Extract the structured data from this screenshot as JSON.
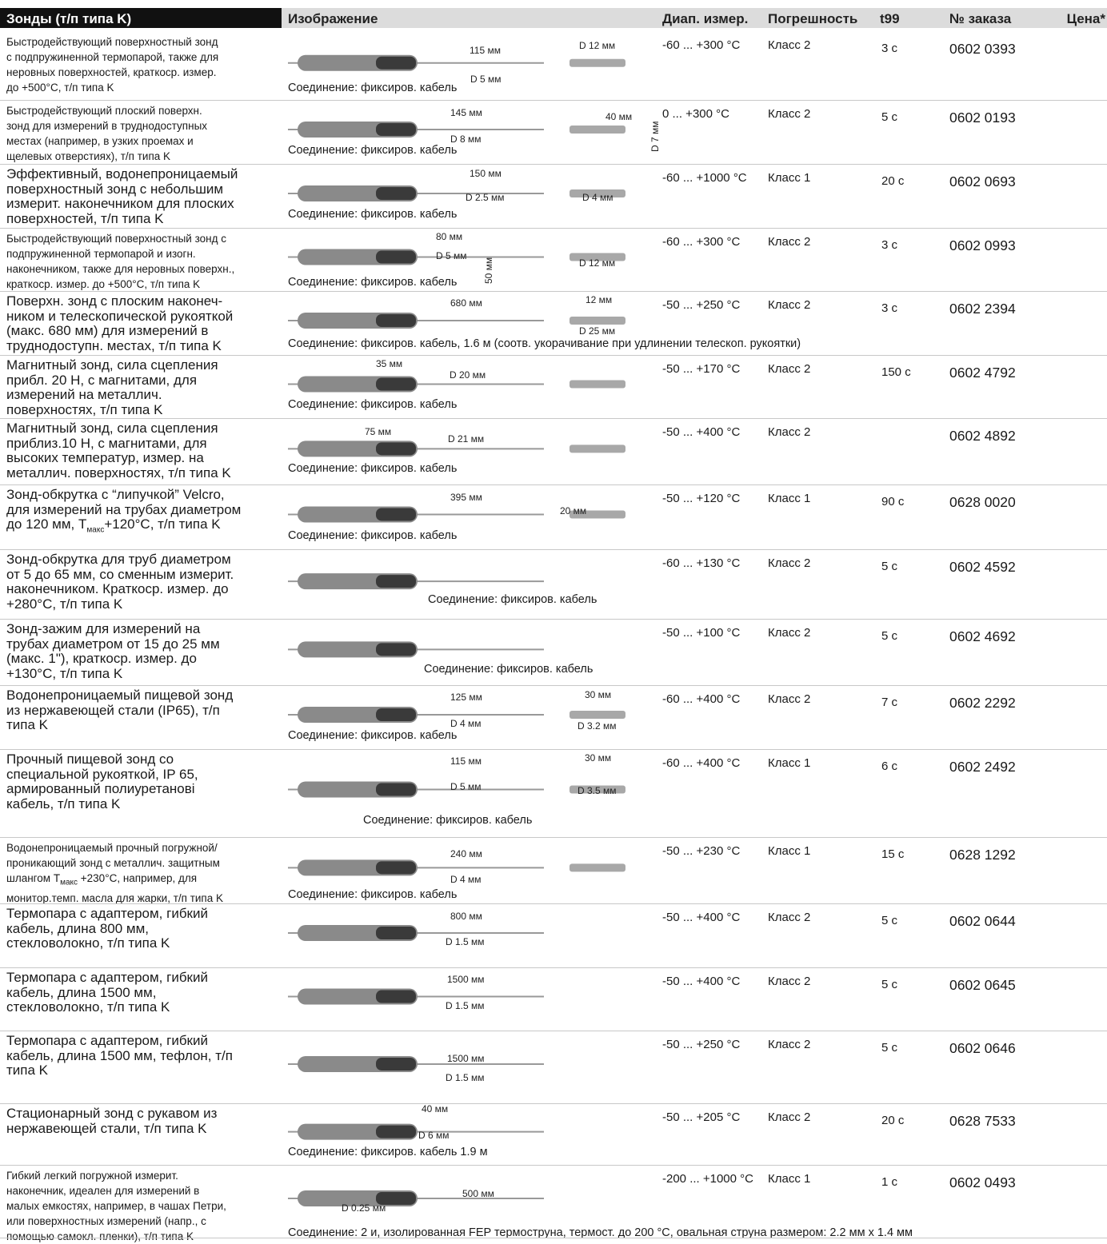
{
  "header": {
    "title": "Зонды (т/п типа K)",
    "image": "Изображение",
    "range": "Диап. измер.",
    "accuracy": "Погрешность",
    "t99": "t99",
    "order": "№ заказа",
    "price": "Цена*"
  },
  "rows": [
    {
      "desc": [
        "Быстродействующий поверхностный зонд",
        "с подпружиненной термопарой, также для",
        "неровных поверхностей, краткоср. измер.",
        "до +500°С, т/п типа K"
      ],
      "labels": [
        "115 мм",
        "D 12 мм",
        "D 5 мм"
      ],
      "connection": "Соединение: фиксиров. кабель",
      "range": "-60 ... +300 °C",
      "accuracy": "Класс 2",
      "t99": "3 с",
      "order": "0602 0393"
    },
    {
      "desc": [
        "Быстродействующий плоский поверхн.",
        "зонд для измерений в труднодоступных",
        "местах (например, в узких проемах и",
        "щелевых отверстиях), т/п типа K"
      ],
      "labels": [
        "145 мм",
        "40 мм",
        "D 8 мм",
        "D 7 мм"
      ],
      "connection": "Соединение: фиксиров. кабель",
      "range": "0 ... +300 °C",
      "accuracy": "Класс 2",
      "t99": "5 с",
      "order": "0602 0193"
    },
    {
      "desc": [
        "Эффективный, водонепроницаемый",
        "поверхностный зонд с небольшим",
        "измерит. наконечником для плоских",
        "поверхностей, т/п типа K"
      ],
      "labels": [
        "150 мм",
        "D 2.5 мм",
        "D 4 мм"
      ],
      "connection": "Соединение: фиксиров. кабель",
      "range": "-60 ... +1000 °C",
      "accuracy": "Класс 1",
      "t99": "20 с",
      "order": "0602 0693"
    },
    {
      "desc": [
        "Быстродействующий поверхностный зонд с",
        "подпружиненной термопарой и изогн.",
        "наконечником, также для неровных поверхн.,",
        "краткоср. измер. до +500°С, т/п типа K"
      ],
      "labels": [
        "80 мм",
        "D 5 мм",
        "50 мм",
        "D 12 мм"
      ],
      "connection": "Соединение: фиксиров. кабель",
      "range": "-60 ... +300 °C",
      "accuracy": "Класс 2",
      "t99": "3 с",
      "order": "0602 0993"
    },
    {
      "desc": [
        "Поверхн. зонд с плоским наконеч-",
        "ником и телескопической рукояткой",
        "(макс. 680 мм) для измерений в",
        "труднодоступн. местах, т/п типа K"
      ],
      "labels": [
        "680 мм",
        "12 мм",
        "D 25 мм"
      ],
      "connection": "Соединение: фиксиров. кабель, 1.6 м (соотв. укорачивание при удлинении телескоп. рукоятки)",
      "range": "-50 ... +250 °C",
      "accuracy": "Класс 2",
      "t99": "3 с",
      "order": "0602 2394"
    },
    {
      "desc": [
        "Магнитный зонд, сила сцепления",
        "прибл. 20 Н, с магнитами, для",
        "измерений на металлич.",
        "поверхностях, т/п типа K"
      ],
      "labels": [
        "35 мм",
        "D 20 мм"
      ],
      "connection": "Соединение: фиксиров. кабель",
      "range": "-50 ... +170 °C",
      "accuracy": "Класс 2",
      "t99": "150 с",
      "order": "0602 4792"
    },
    {
      "desc": [
        "Магнитный зонд, сила сцепления",
        "приблиз.10 Н, с магнитами, для",
        "высоких температур, измер. на",
        "металлич. поверхностях, т/п типа K"
      ],
      "labels": [
        "75 мм",
        "D 21 мм"
      ],
      "connection": "Соединение: фиксиров. кабель",
      "range": "-50 ... +400 °C",
      "accuracy": "Класс 2",
      "order": "0602 4892"
    },
    {
      "desc": [
        "Зонд-обкрутка с “липучкой” Velcro,",
        "для измерений на трубах диаметром",
        [
          "до 120 мм, T",
          "макс",
          "+120°С, т/п типа K"
        ]
      ],
      "labels": [
        "395 мм",
        "20 мм"
      ],
      "connection": "Соединение: фиксиров. кабель",
      "range": "-50 ... +120 °C",
      "accuracy": "Класс 1",
      "t99": "90 с",
      "order": "0628 0020"
    },
    {
      "desc": [
        "Зонд-обкрутка для труб диаметром",
        "от 5 до 65 мм, со сменным измерит.",
        "наконечником. Краткоср. измер. до",
        "+280°С, т/п типа K"
      ],
      "labels": [],
      "connection": "Соединение: фиксиров. кабель",
      "range": "-60 ... +130 °C",
      "accuracy": "Класс 2",
      "t99": "5 с",
      "order": "0602 4592"
    },
    {
      "desc": [
        "Зонд-зажим для измерений на",
        "трубах диаметром от 15 до 25 мм",
        "(макс. 1\"), краткоср. измер. до",
        "+130°С, т/п типа K"
      ],
      "labels": [],
      "connection": "Соединение: фиксиров. кабель",
      "range": "-50 ... +100 °C",
      "accuracy": "Класс 2",
      "t99": "5 с",
      "order": "0602 4692"
    },
    {
      "desc": [
        "Водонепроницаемый пищевой зонд",
        "из нержавеющей стали (IP65), т/п",
        "типа K"
      ],
      "labels": [
        "125 мм",
        "30 мм",
        "D 4 мм",
        "D 3.2 мм"
      ],
      "connection": "Соединение: фиксиров. кабель",
      "range": "-60 ... +400 °C",
      "accuracy": "Класс 2",
      "t99": "7 с",
      "order": "0602 2292"
    },
    {
      "desc": [
        "Прочный пищевой зонд со",
        "специальной рукояткой, IP 65,",
        "армированный полиуретанові",
        "кабель, т/п типа K"
      ],
      "labels": [
        "115 мм",
        "30 мм",
        "D 5 мм",
        "D 3.5 мм"
      ],
      "connection": "Соединение: фиксиров. кабель",
      "range": "-60 ... +400 °C",
      "accuracy": "Класс 1",
      "t99": "6 с",
      "order": "0602 2492"
    },
    {
      "desc": [
        "Водонепроницаемый прочный погружной/",
        "проникающий зонд  с металлич. защитным",
        [
          "шлангом T",
          "макс",
          " +230°С, например, для"
        ],
        "монитор.темп. масла для жарки, т/п типа K"
      ],
      "labels": [
        "240 мм",
        "D 4 мм"
      ],
      "connection": "Соединение: фиксиров. кабель",
      "range": "-50 ... +230 °C",
      "accuracy": "Класс 1",
      "t99": "15 с",
      "order": "0628 1292"
    },
    {
      "desc": [
        "Термопара с адаптером, гибкий",
        "кабель, длина 800 мм,",
        "стекловолокно, т/п типа K"
      ],
      "labels": [
        "800 мм",
        "D 1.5 мм"
      ],
      "range": "-50 ... +400 °C",
      "accuracy": "Класс 2",
      "t99": "5 с",
      "order": "0602 0644"
    },
    {
      "desc": [
        "Термопара с адаптером, гибкий",
        "кабель, длина 1500 мм,",
        "стекловолокно, т/п типа K"
      ],
      "labels": [
        "1500 мм",
        "D 1.5 мм"
      ],
      "range": "-50 ... +400 °C",
      "accuracy": "Класс 2",
      "t99": "5 с",
      "order": "0602 0645"
    },
    {
      "desc": [
        "Термопара с адаптером, гибкий",
        "кабель, длина 1500 мм, тефлон, т/п",
        "типа K"
      ],
      "labels": [
        "1500 мм",
        "D 1.5 мм"
      ],
      "range": "-50 ... +250 °C",
      "accuracy": "Класс 2",
      "t99": "5 с",
      "order": "0602 0646"
    },
    {
      "desc": [
        "Стационарный зонд с рукавом из",
        "нержавеющей стали, т/п типа K"
      ],
      "labels": [
        "40 мм",
        "D 6 мм"
      ],
      "connection": "Соединение: фиксиров. кабель 1.9 м",
      "range": "-50 ... +205 °C",
      "accuracy": "Класс 2",
      "t99": "20 с",
      "order": "0628 7533"
    },
    {
      "desc": [
        "Гибкий легкий погружной измерит.",
        "наконечник, идеален для измерений в",
        "малых емкостях, например, в чашах Петри,",
        "или поверхностных измерений (напр., с",
        "помощью самокл. пленки), т/п типа K"
      ],
      "labels": [
        "500 мм",
        "D 0.25 мм"
      ],
      "connection": "Соединение: 2 и, изолированная FEP термострунa, термост. до 200 °C, овальная струна размером: 2.2 мм x 1.4 мм",
      "range": "-200 ... +1000 °C",
      "accuracy": "Класс 1",
      "t99": "1 с",
      "order": "0602 0493"
    }
  ]
}
